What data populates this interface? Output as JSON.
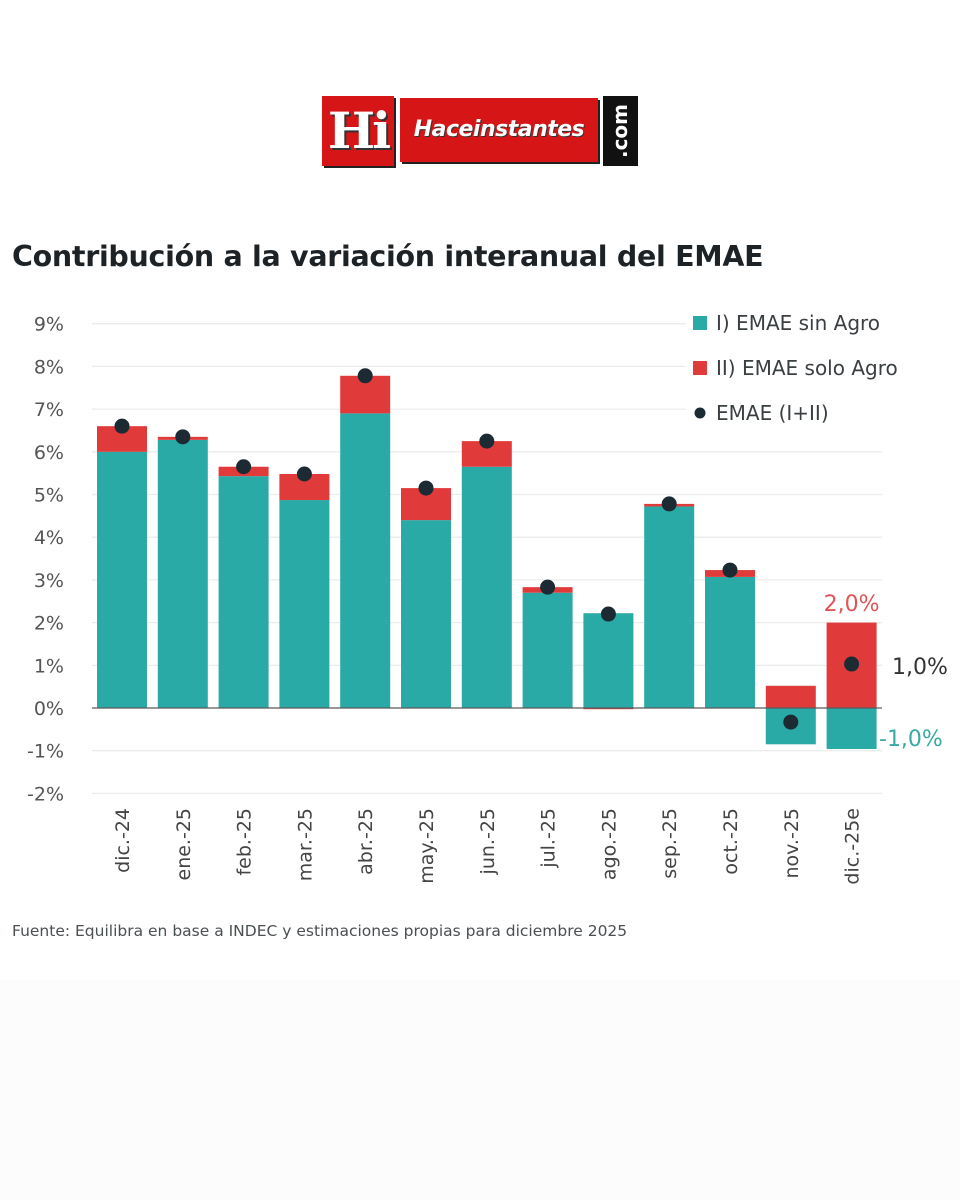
{
  "logo": {
    "hi": "Hi",
    "name": "Haceinstantes",
    "tld": ".com"
  },
  "chart_data": {
    "type": "bar",
    "stacked": true,
    "title": "Contribución a la variación interanual del EMAE",
    "source": "Fuente: Equilibra en base a INDEC y estimaciones propias para diciembre 2025",
    "xlabel": "",
    "ylabel": "",
    "ylim": [
      -2,
      9
    ],
    "yticks": [
      9,
      8,
      7,
      6,
      5,
      4,
      3,
      2,
      1,
      0,
      -1,
      -2
    ],
    "ytick_labels": [
      "9%",
      "8%",
      "7%",
      "6%",
      "5%",
      "4%",
      "3%",
      "2%",
      "1%",
      "0%",
      "-1%",
      "-2%"
    ],
    "grid": true,
    "legend_position": "top-right",
    "categories": [
      "dic.-24",
      "ene.-25",
      "feb.-25",
      "mar.-25",
      "abr.-25",
      "may.-25",
      "jun.-25",
      "jul.-25",
      "ago.-25",
      "sep.-25",
      "oct.-25",
      "nov.-25",
      "dic.-25e"
    ],
    "series": [
      {
        "name": "I) EMAE sin Agro",
        "kind": "bar",
        "color": "#2aaaa6",
        "values": [
          6.0,
          6.28,
          5.43,
          4.87,
          6.9,
          4.4,
          5.65,
          2.7,
          2.22,
          4.72,
          3.07,
          -0.85,
          -0.96
        ]
      },
      {
        "name": "II) EMAE solo Agro",
        "kind": "bar",
        "color": "#e03a3a",
        "values": [
          0.6,
          0.07,
          0.22,
          0.61,
          0.88,
          0.75,
          0.6,
          0.13,
          -0.02,
          0.06,
          0.16,
          0.52,
          2.0
        ]
      },
      {
        "name": "EMAE (I+II)",
        "kind": "scatter",
        "color": "#1b2a33",
        "values": [
          6.6,
          6.35,
          5.65,
          5.48,
          7.78,
          5.15,
          6.25,
          2.83,
          2.2,
          4.78,
          3.23,
          -0.33,
          1.03
        ]
      }
    ],
    "annotations": [
      {
        "text": "2,0%",
        "color": "#e05555",
        "target": "dic.-25e II) EMAE solo Agro"
      },
      {
        "text": "1,0%",
        "color": "#333333",
        "target": "dic.-25e EMAE (I+II)"
      },
      {
        "text": "-1,0%",
        "color": "#3aa9a4",
        "target": "dic.-25e I) EMAE sin Agro"
      }
    ]
  }
}
